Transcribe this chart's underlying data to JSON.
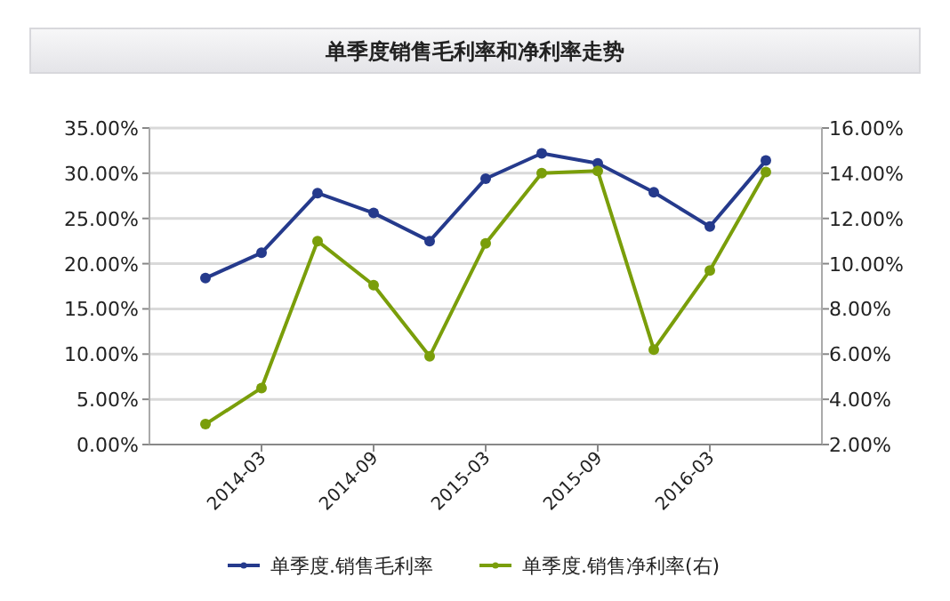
{
  "chart_data": {
    "type": "line",
    "title": "单季度销售毛利率和净利率走势",
    "categories": [
      null,
      "2014-03",
      null,
      "2014-09",
      null,
      "2015-03",
      null,
      "2015-09",
      null,
      "2016-03",
      null
    ],
    "series": [
      {
        "name": "单季度.销售毛利率",
        "color": "#253a8c",
        "values": [
          18.4,
          21.2,
          27.8,
          25.6,
          22.5,
          29.4,
          32.2,
          31.1,
          27.9,
          24.1,
          31.4
        ]
      },
      {
        "name": "单季度.销售净利率(右)",
        "color": "#7a9e0a",
        "axis": "y2",
        "values": [
          2.9,
          4.5,
          11.0,
          9.05,
          5.9,
          10.9,
          14.0,
          14.1,
          6.2,
          9.7,
          14.05
        ]
      }
    ],
    "ylim": [
      0,
      35
    ],
    "yticks": [
      {
        "value": 0,
        "label": "0.00%"
      },
      {
        "value": 5,
        "label": "5.00%"
      },
      {
        "value": 10,
        "label": "10.00%"
      },
      {
        "value": 15,
        "label": "15.00%"
      },
      {
        "value": 20,
        "label": "20.00%"
      },
      {
        "value": 25,
        "label": "25.00%"
      },
      {
        "value": 30,
        "label": "30.00%"
      },
      {
        "value": 35,
        "label": "35.00%"
      }
    ],
    "y2lim": [
      2,
      16
    ],
    "y2ticks": [
      {
        "value": 2,
        "label": "2.00%"
      },
      {
        "value": 4,
        "label": "4.00%"
      },
      {
        "value": 6,
        "label": "6.00%"
      },
      {
        "value": 8,
        "label": "8.00%"
      },
      {
        "value": 10,
        "label": "10.00%"
      },
      {
        "value": 12,
        "label": "12.00%"
      },
      {
        "value": 14,
        "label": "14.00%"
      },
      {
        "value": 16,
        "label": "16.00%"
      }
    ],
    "grid": "y",
    "legend": "bottom",
    "marker": "circle",
    "line_style": "solid"
  }
}
